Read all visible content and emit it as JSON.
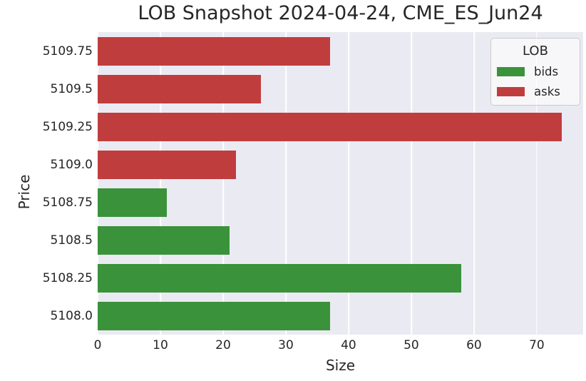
{
  "chart_data": {
    "type": "bar",
    "orientation": "horizontal",
    "title": "LOB Snapshot 2024-04-24, CME_ES_Jun24",
    "xlabel": "Size",
    "ylabel": "Price",
    "categories": [
      "5109.75",
      "5109.5",
      "5109.25",
      "5109.0",
      "5108.75",
      "5108.5",
      "5108.25",
      "5108.0"
    ],
    "bars": [
      {
        "price": "5109.75",
        "size": 37,
        "side": "asks"
      },
      {
        "price": "5109.5",
        "size": 26,
        "side": "asks"
      },
      {
        "price": "5109.25",
        "size": 74,
        "side": "asks"
      },
      {
        "price": "5109.0",
        "size": 22,
        "side": "asks"
      },
      {
        "price": "5108.75",
        "size": 11,
        "side": "bids"
      },
      {
        "price": "5108.5",
        "size": 21,
        "side": "bids"
      },
      {
        "price": "5108.25",
        "size": 58,
        "side": "bids"
      },
      {
        "price": "5108.0",
        "size": 37,
        "side": "bids"
      }
    ],
    "series": [
      {
        "name": "asks",
        "values": [
          37,
          26,
          74,
          22,
          null,
          null,
          null,
          null
        ]
      },
      {
        "name": "bids",
        "values": [
          null,
          null,
          null,
          null,
          11,
          21,
          58,
          37
        ]
      }
    ],
    "x_ticks": [
      0,
      10,
      20,
      30,
      40,
      50,
      60,
      70
    ],
    "xlim": [
      0,
      77.4
    ],
    "grid": true,
    "colors": {
      "bids": "#3a923a",
      "asks": "#c03d3e"
    },
    "background_color": "#eaeaf2",
    "gridline_color": "#ffffff",
    "legend": {
      "title": "LOB",
      "position": "upper-right",
      "entries": [
        {
          "label": "bids",
          "color": "#3a923a"
        },
        {
          "label": "asks",
          "color": "#c03d3e"
        }
      ]
    }
  }
}
